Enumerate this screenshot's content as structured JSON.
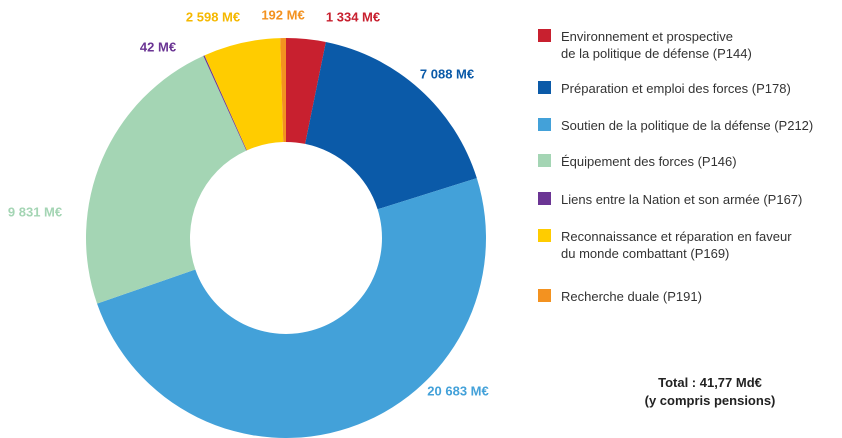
{
  "chart_data": {
    "type": "donut",
    "categories": [
      "Environnement et prospective\nde la politique de défense (P144)",
      "Préparation et emploi des forces (P178)",
      "Soutien de la politique de la défense (P212)",
      "Équipement des forces (P146)",
      "Liens entre la Nation et son armée (P167)",
      "Reconnaissance et réparation en faveur\ndu monde combattant (P169)",
      "Recherche duale (P191)"
    ],
    "values": [
      1334,
      7088,
      20683,
      9831,
      42,
      2598,
      192
    ],
    "value_labels": [
      "1 334 M€",
      "7 088 M€",
      "20 683 M€",
      "9 831 M€",
      "42 M€",
      "2 598 M€",
      "192 M€"
    ],
    "colors": [
      "#c8202f",
      "#0b5aa8",
      "#43a1d9",
      "#a4d5b4",
      "#6b3594",
      "#ffcc00",
      "#f39220"
    ],
    "annotations": [
      "Total : 41,77 Md€",
      "(y compris pensions)"
    ]
  }
}
